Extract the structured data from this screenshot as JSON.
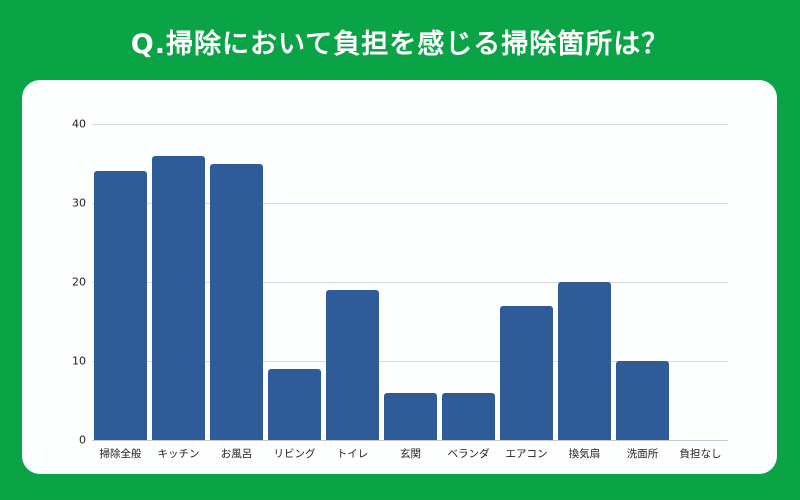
{
  "title": "Q.掃除において負担を感じる掃除箇所は？",
  "colors": {
    "background": "#0aa346",
    "card": "#fdfefe",
    "bar": "#2f5b98",
    "grid": "#d9d9e0"
  },
  "chart_data": {
    "type": "bar",
    "title": "Q.掃除において負担を感じる掃除箇所は？",
    "xlabel": "",
    "ylabel": "",
    "categories": [
      "掃除全般",
      "キッチン",
      "お風呂",
      "リビング",
      "トイレ",
      "玄関",
      "ベランダ",
      "エアコン",
      "換気扇",
      "洗面所",
      "負担なし"
    ],
    "values": [
      34,
      36,
      35,
      9,
      19,
      6,
      6,
      17,
      20,
      10,
      0
    ],
    "ylim": [
      0,
      40
    ],
    "yticks": [
      0,
      10,
      20,
      30,
      40
    ],
    "grid": true,
    "legend": null
  }
}
